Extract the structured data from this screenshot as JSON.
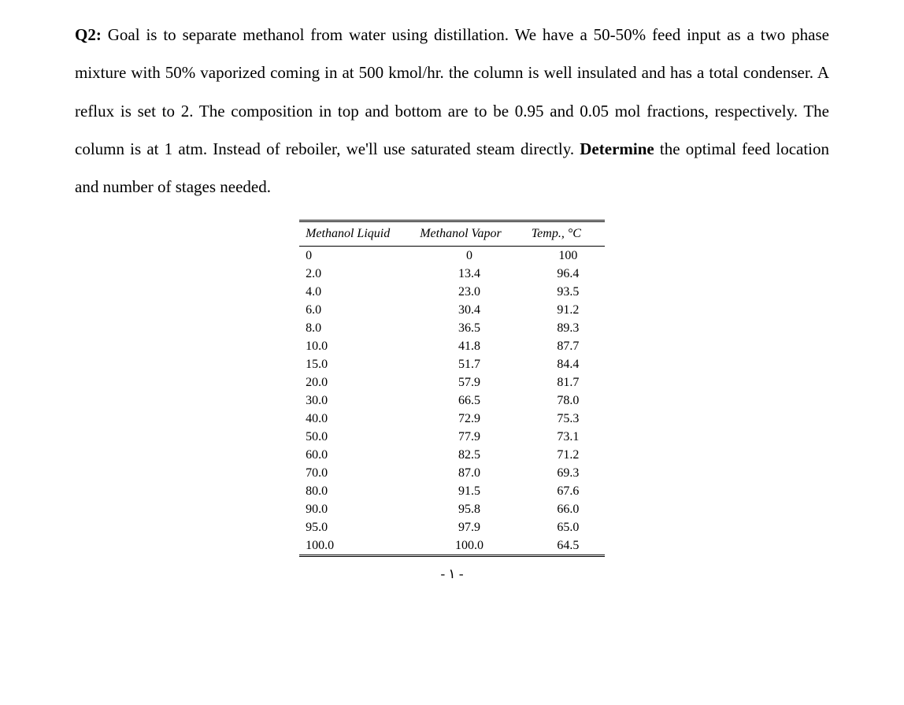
{
  "question": {
    "label": "Q2:",
    "text_p1": " Goal is to separate methanol from water using distillation. We have a 50-50% feed input as a two phase mixture with 50% vaporized coming in at 500 kmol/hr. the column is well insulated and has a total condenser. A reflux is set to 2. The composition in top and bottom are to be 0.95 and 0.05 mol fractions, respectively. The column is at 1 atm. Instead of reboiler, we'll use saturated steam directly. ",
    "determine": "Determine",
    "text_p2": " the optimal feed location and number of stages needed."
  },
  "table": {
    "headers": {
      "col1": "Methanol Liquid",
      "col2": "Methanol Vapor",
      "col3": "Temp., °C"
    },
    "rows": [
      {
        "x": "0",
        "y": "0",
        "t": "100"
      },
      {
        "x": "2.0",
        "y": "13.4",
        "t": "96.4"
      },
      {
        "x": "4.0",
        "y": "23.0",
        "t": "93.5"
      },
      {
        "x": "6.0",
        "y": "30.4",
        "t": "91.2"
      },
      {
        "x": "8.0",
        "y": "36.5",
        "t": "89.3"
      },
      {
        "x": "10.0",
        "y": "41.8",
        "t": "87.7"
      },
      {
        "x": "15.0",
        "y": "51.7",
        "t": "84.4"
      },
      {
        "x": "20.0",
        "y": "57.9",
        "t": "81.7"
      },
      {
        "x": "30.0",
        "y": "66.5",
        "t": "78.0"
      },
      {
        "x": "40.0",
        "y": "72.9",
        "t": "75.3"
      },
      {
        "x": "50.0",
        "y": "77.9",
        "t": "73.1"
      },
      {
        "x": "60.0",
        "y": "82.5",
        "t": "71.2"
      },
      {
        "x": "70.0",
        "y": "87.0",
        "t": "69.3"
      },
      {
        "x": "80.0",
        "y": "91.5",
        "t": "67.6"
      },
      {
        "x": "90.0",
        "y": "95.8",
        "t": "66.0"
      },
      {
        "x": "95.0",
        "y": "97.9",
        "t": "65.0"
      },
      {
        "x": "100.0",
        "y": "100.0",
        "t": "64.5"
      }
    ]
  },
  "footer": {
    "page_marker": "- ١ -"
  },
  "styling": {
    "font_family": "Times New Roman",
    "body_fontsize": 21,
    "table_fontsize": 16,
    "line_height": 2.3,
    "text_color": "#000000",
    "background_color": "#ffffff",
    "table_border_color": "#000000"
  }
}
